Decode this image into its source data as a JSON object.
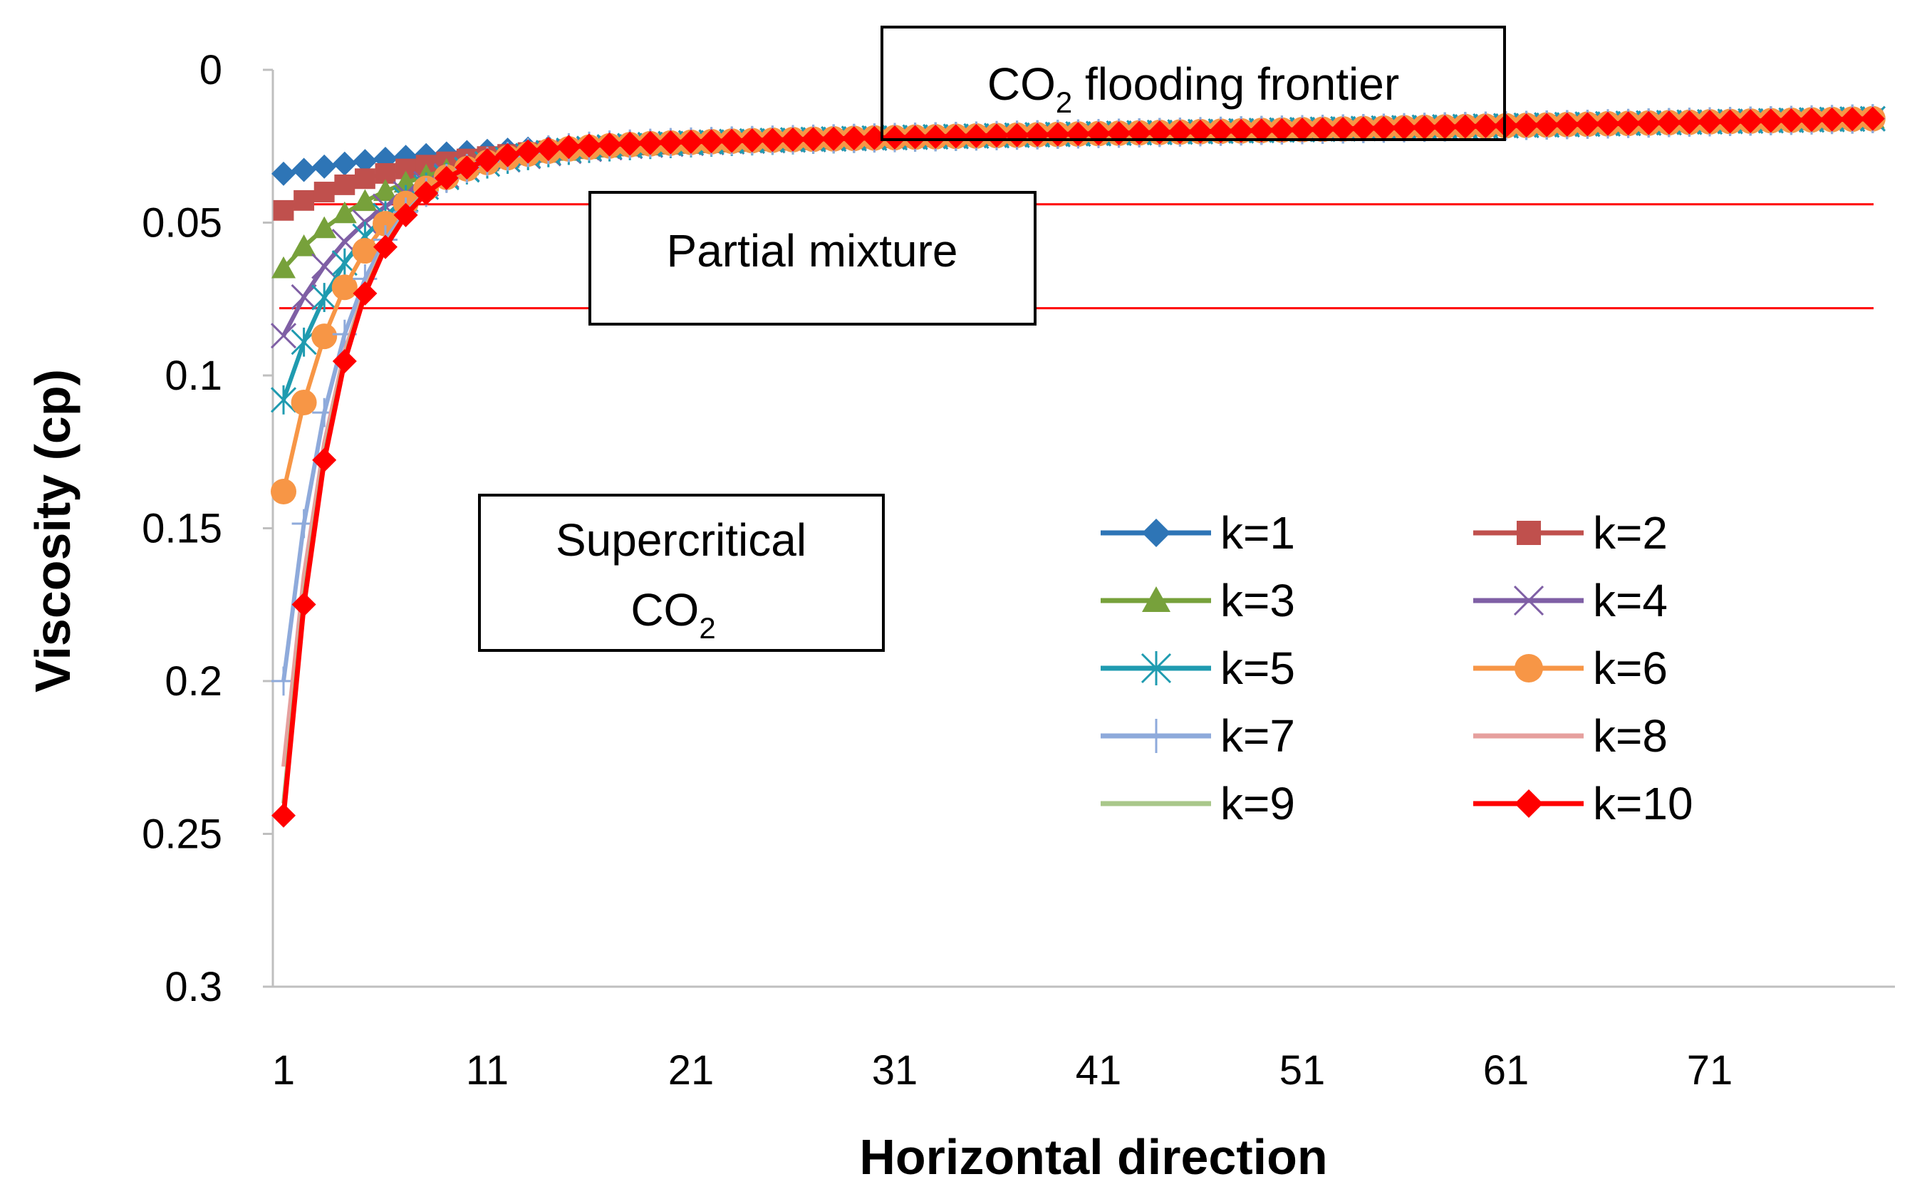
{
  "chart_data": {
    "type": "line",
    "xlabel": "Horizontal direction",
    "ylabel": "Viscosity (cp)",
    "x_ticks": [
      "1",
      "11",
      "21",
      "31",
      "41",
      "51",
      "61",
      "71"
    ],
    "y_ticks": [
      "0",
      "0.05",
      "0.1",
      "0.15",
      "0.2",
      "0.25",
      "0.3"
    ],
    "xlim": [
      1,
      80
    ],
    "ylim": [
      0,
      0.3
    ],
    "y_inverted": true,
    "grid": false,
    "legend_position": "center-right",
    "annotations": {
      "frontier": {
        "main": "CO",
        "sub": "2",
        "rest": " flooding frontier"
      },
      "partial": {
        "text": "Partial mixture"
      },
      "supercritical": {
        "line1": "Supercritical",
        "line2_main": "CO",
        "line2_sub": "2"
      }
    },
    "reference_lines": {
      "color": "#ff0000",
      "y_values": [
        0.044,
        0.078
      ]
    },
    "series": [
      {
        "name": "k=1",
        "color": "#2e75b6",
        "marker": "diamond",
        "start": 0.034,
        "rate": 0.15
      },
      {
        "name": "k=2",
        "color": "#c0504d",
        "marker": "square",
        "start": 0.046,
        "rate": 0.17
      },
      {
        "name": "k=3",
        "color": "#77a13b",
        "marker": "triangle",
        "start": 0.065,
        "rate": 0.2
      },
      {
        "name": "k=4",
        "color": "#7f5fa5",
        "marker": "x",
        "start": 0.087,
        "rate": 0.23
      },
      {
        "name": "k=5",
        "color": "#1f9bb0",
        "marker": "star",
        "start": 0.108,
        "rate": 0.26
      },
      {
        "name": "k=6",
        "color": "#f79646",
        "marker": "circle",
        "start": 0.138,
        "rate": 0.3
      },
      {
        "name": "k=7",
        "color": "#8eaadb",
        "marker": "plus",
        "start": 0.2,
        "rate": 0.35
      },
      {
        "name": "k=8",
        "color": "#e6a09e",
        "marker": "none",
        "start": 0.228,
        "rate": 0.37
      },
      {
        "name": "k=9",
        "color": "#a9c78a",
        "marker": "none",
        "start": 0.24,
        "rate": 0.38
      },
      {
        "name": "k=10",
        "color": "#ff0000",
        "marker": "diamond",
        "start": 0.244,
        "rate": 0.38
      }
    ],
    "plateau": {
      "start": 0.026,
      "end": 0.016
    }
  }
}
